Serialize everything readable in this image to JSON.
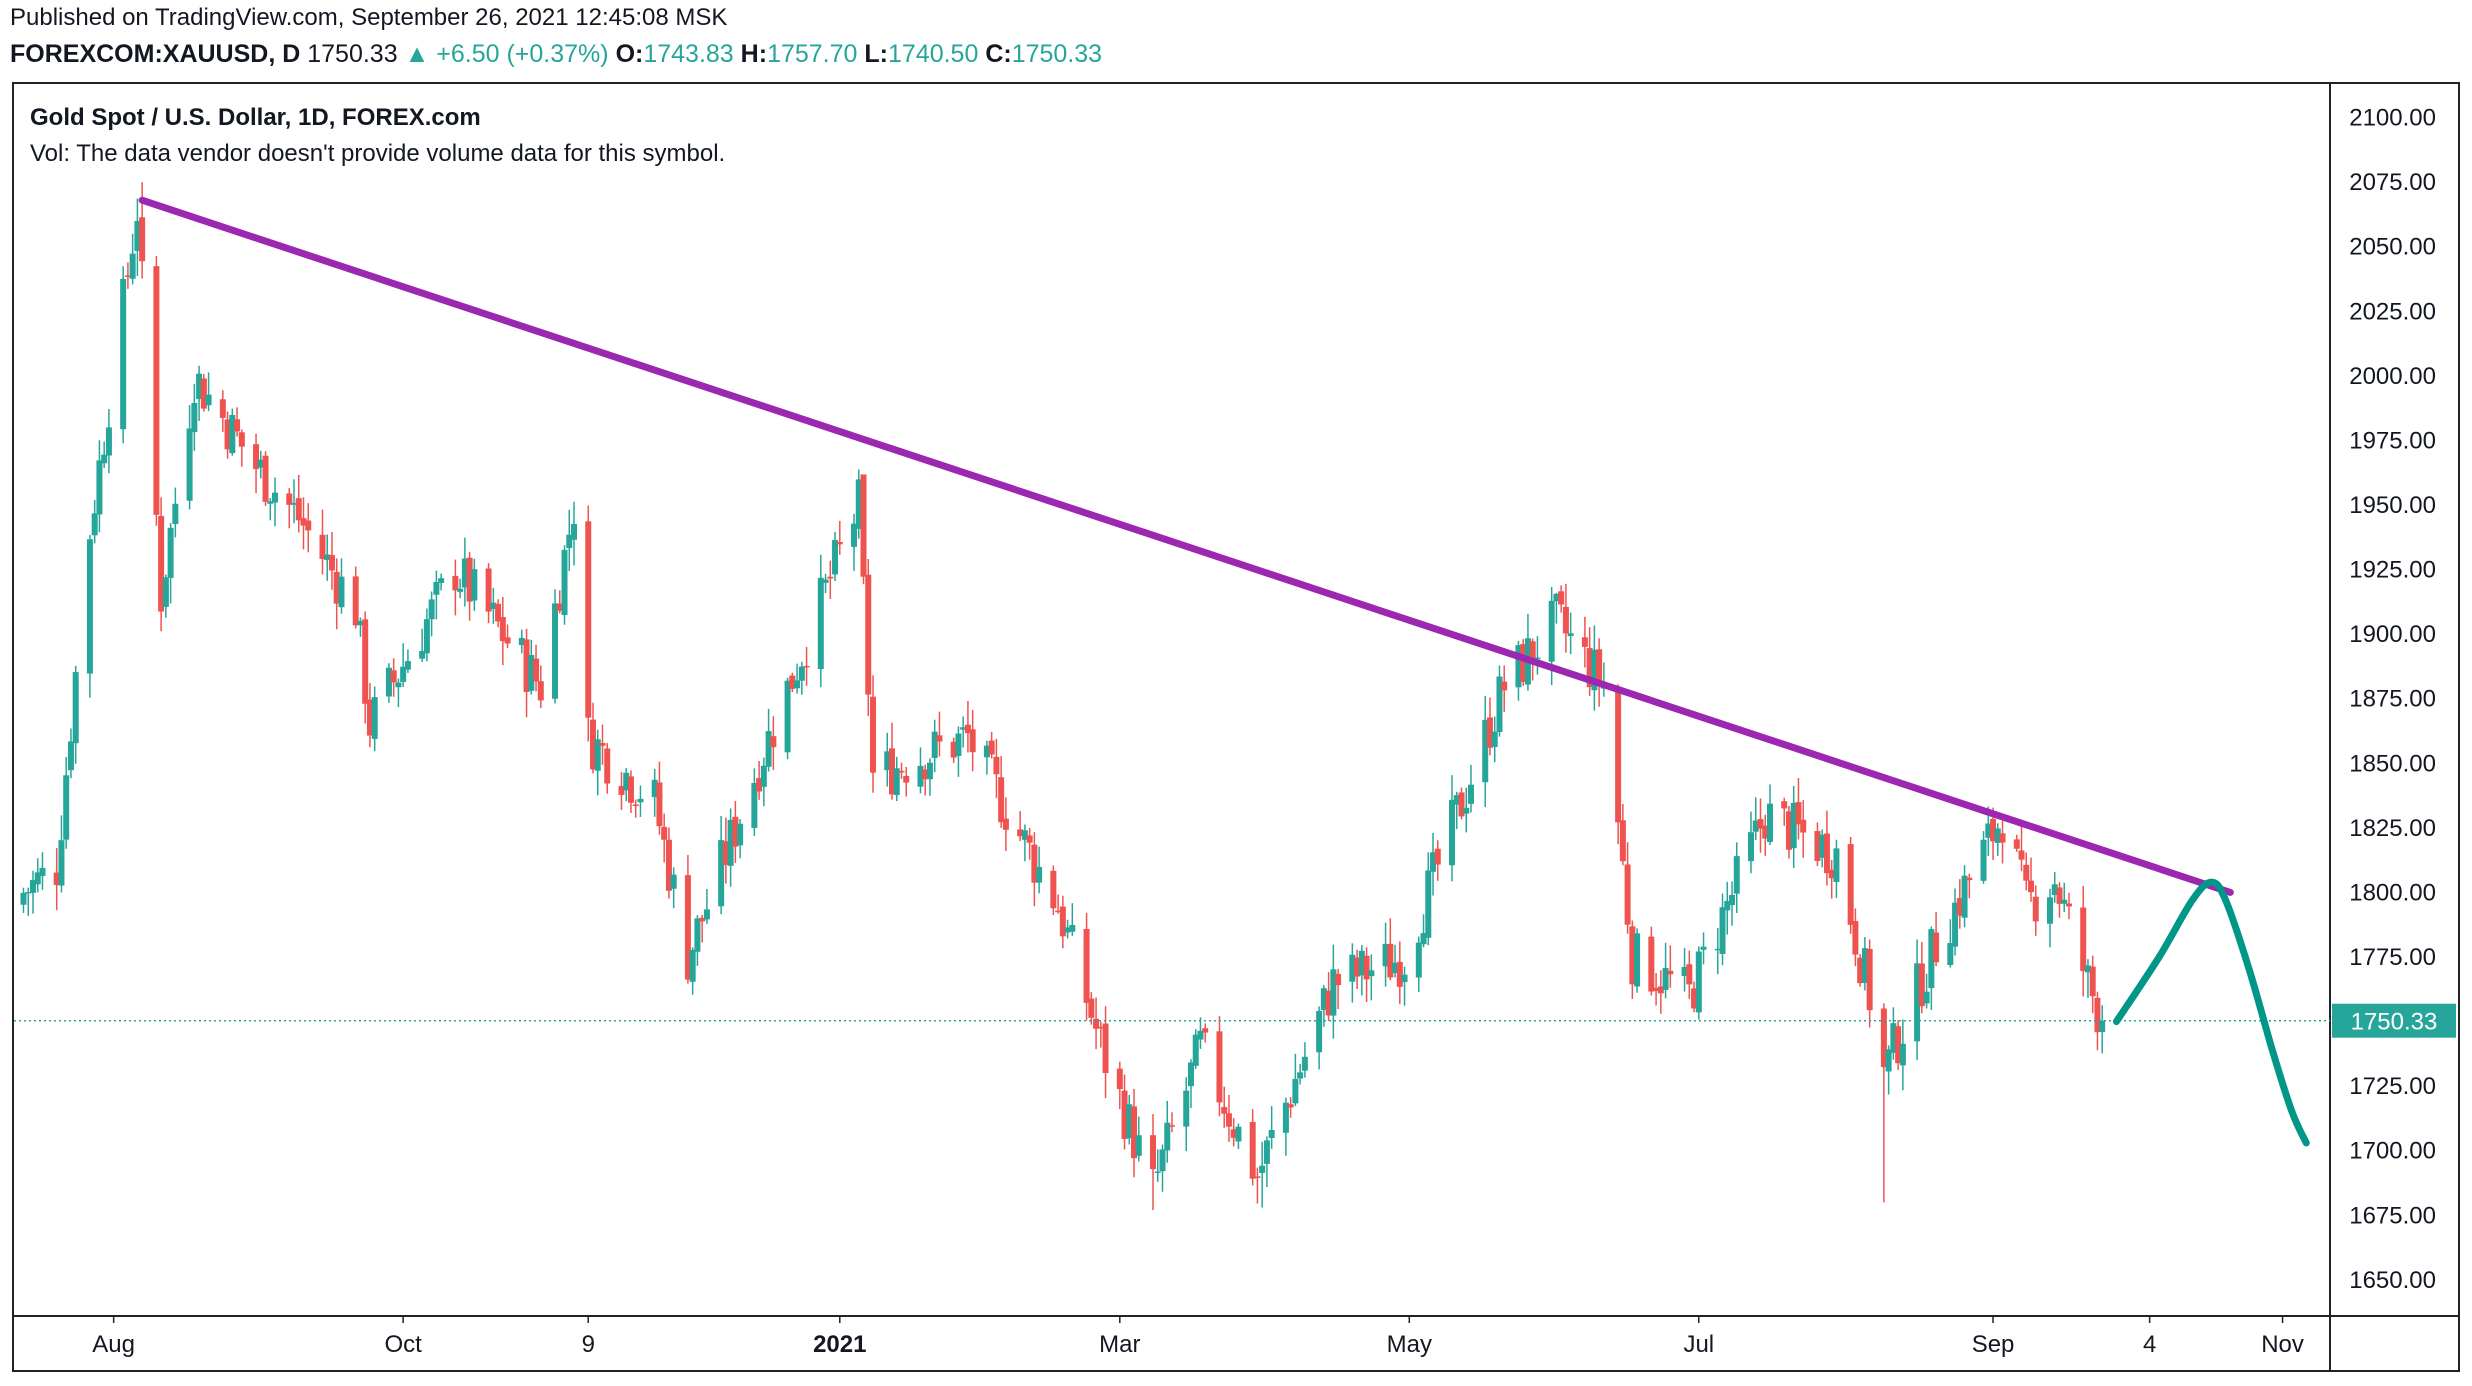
{
  "header": {
    "published": "Published on TradingView.com, September 26, 2021 12:45:08 MSK",
    "symbol": "FOREXCOM:XAUUSD, D",
    "last": "1750.33",
    "change": "▲ +6.50 (+0.37%)",
    "o_label": "O:",
    "o_value": "1743.83",
    "h_label": "H:",
    "h_value": "1757.70",
    "l_label": "L:",
    "l_value": "1740.50",
    "c_label": "C:",
    "c_value": "1750.33"
  },
  "legend": {
    "title": "Gold Spot / U.S. Dollar, 1D, FOREX.com",
    "volume_note": "Vol: The data vendor doesn't provide volume data for this symbol."
  },
  "colors": {
    "up": "#26a69a",
    "down": "#ef5350",
    "trendline": "#9c27b0",
    "projection": "#009688",
    "price_line": "#26a69a"
  },
  "chart_data": {
    "type": "candlestick",
    "symbol": "FOREXCOM:XAUUSD",
    "interval": "1D",
    "y_axis": {
      "ticks": [
        1650,
        1675,
        1700,
        1725,
        1750,
        1775,
        1800,
        1825,
        1850,
        1875,
        1900,
        1925,
        1950,
        1975,
        2000,
        2025,
        2050,
        2075,
        2100
      ],
      "tick_labels": [
        "1650.00",
        "1675.00",
        "1700.00",
        "1725.00",
        "1750.00",
        "1775.00",
        "1800.00",
        "1825.00",
        "1850.00",
        "1875.00",
        "1900.00",
        "1925.00",
        "1950.00",
        "1975.00",
        "2000.00",
        "2025.00",
        "2050.00",
        "2075.00",
        "2100.00"
      ],
      "range": [
        1636,
        2113
      ],
      "position": "right"
    },
    "x_axis": {
      "labels": [
        {
          "text": "Aug",
          "date": "2020-08-01",
          "bold": false
        },
        {
          "text": "Oct",
          "date": "2020-10-01",
          "bold": false
        },
        {
          "text": "9",
          "date": "2020-11-09",
          "bold": false
        },
        {
          "text": "2021",
          "date": "2021-01-01",
          "bold": true
        },
        {
          "text": "Mar",
          "date": "2021-03-01",
          "bold": false
        },
        {
          "text": "May",
          "date": "2021-05-01",
          "bold": false
        },
        {
          "text": "Jul",
          "date": "2021-07-01",
          "bold": false
        },
        {
          "text": "Sep",
          "date": "2021-09-01",
          "bold": false
        },
        {
          "text": "4",
          "date": "2021-10-04",
          "bold": false
        },
        {
          "text": "Nov",
          "date": "2021-11-01",
          "bold": false
        }
      ],
      "range": [
        "2020-07-11",
        "2021-11-11"
      ]
    },
    "price_anchors": [
      {
        "date": "2020-07-13",
        "close": 1800
      },
      {
        "date": "2020-07-20",
        "close": 1810
      },
      {
        "date": "2020-07-27",
        "close": 1940
      },
      {
        "date": "2020-08-06",
        "close": 2065
      },
      {
        "date": "2020-08-11",
        "close": 1915
      },
      {
        "date": "2020-08-18",
        "close": 2000
      },
      {
        "date": "2020-08-31",
        "close": 1965
      },
      {
        "date": "2020-09-09",
        "close": 1945
      },
      {
        "date": "2020-09-21",
        "close": 1910
      },
      {
        "date": "2020-09-24",
        "close": 1865
      },
      {
        "date": "2020-10-12",
        "close": 1925
      },
      {
        "date": "2020-10-30",
        "close": 1880
      },
      {
        "date": "2020-11-06",
        "close": 1950
      },
      {
        "date": "2020-11-09",
        "close": 1860
      },
      {
        "date": "2020-11-23",
        "close": 1835
      },
      {
        "date": "2020-11-30",
        "close": 1775
      },
      {
        "date": "2020-12-15",
        "close": 1850
      },
      {
        "date": "2021-01-05",
        "close": 1950
      },
      {
        "date": "2021-01-08",
        "close": 1845
      },
      {
        "date": "2021-01-28",
        "close": 1860
      },
      {
        "date": "2021-02-16",
        "close": 1795
      },
      {
        "date": "2021-02-26",
        "close": 1735
      },
      {
        "date": "2021-03-08",
        "close": 1685
      },
      {
        "date": "2021-03-18",
        "close": 1740
      },
      {
        "date": "2021-03-30",
        "close": 1690
      },
      {
        "date": "2021-04-15",
        "close": 1765
      },
      {
        "date": "2021-04-30",
        "close": 1775
      },
      {
        "date": "2021-05-21",
        "close": 1880
      },
      {
        "date": "2021-06-01",
        "close": 1905
      },
      {
        "date": "2021-06-11",
        "close": 1880
      },
      {
        "date": "2021-06-17",
        "close": 1775
      },
      {
        "date": "2021-06-29",
        "close": 1760
      },
      {
        "date": "2021-07-15",
        "close": 1830
      },
      {
        "date": "2021-07-30",
        "close": 1815
      },
      {
        "date": "2021-08-06",
        "close": 1760
      },
      {
        "date": "2021-08-09",
        "close": 1730
      },
      {
        "date": "2021-08-20",
        "close": 1780
      },
      {
        "date": "2021-09-03",
        "close": 1830
      },
      {
        "date": "2021-09-08",
        "close": 1795
      },
      {
        "date": "2021-09-14",
        "close": 1805
      },
      {
        "date": "2021-09-21",
        "close": 1765
      },
      {
        "date": "2021-09-24",
        "close": 1750
      }
    ],
    "notable_lows": [
      {
        "date": "2021-08-09",
        "low": 1680
      },
      {
        "date": "2021-03-08",
        "low": 1677
      },
      {
        "date": "2021-03-31",
        "low": 1678
      }
    ],
    "notable_highs": [
      {
        "date": "2020-08-07",
        "high": 2075
      },
      {
        "date": "2021-06-01",
        "high": 1916
      },
      {
        "date": "2021-01-06",
        "high": 1959
      }
    ],
    "last_price": 1750.33,
    "last_price_label": "1750.33",
    "trendline": {
      "start": {
        "date": "2020-08-07",
        "price": 2068
      },
      "end": {
        "date": "2021-10-21",
        "price": 1800
      }
    },
    "projection": [
      {
        "date": "2021-09-27",
        "price": 1750
      },
      {
        "date": "2021-10-06",
        "price": 1775
      },
      {
        "date": "2021-10-13",
        "price": 1797
      },
      {
        "date": "2021-10-17",
        "price": 1804
      },
      {
        "date": "2021-10-20",
        "price": 1797
      },
      {
        "date": "2021-10-25",
        "price": 1770
      },
      {
        "date": "2021-10-30",
        "price": 1738
      },
      {
        "date": "2021-11-03",
        "price": 1715
      },
      {
        "date": "2021-11-06",
        "price": 1703
      }
    ],
    "grid": false,
    "legend_placement": "top-left"
  }
}
